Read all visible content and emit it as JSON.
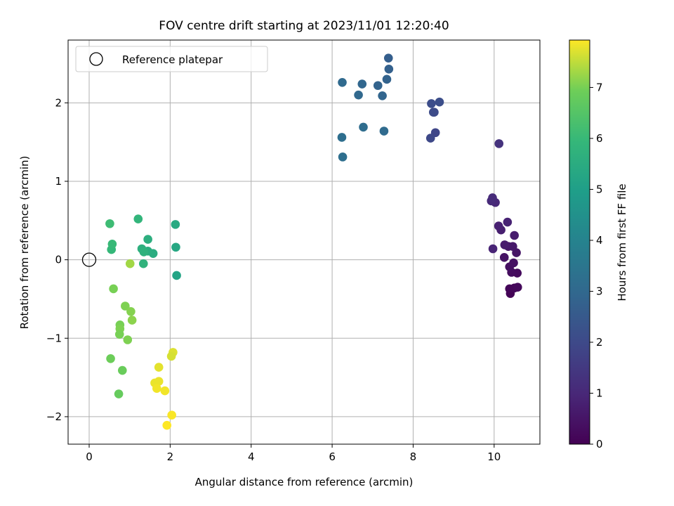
{
  "chart_data": {
    "type": "scatter",
    "title": "FOV centre drift starting at 2023/11/01 12:20:40",
    "xlabel": "Angular distance from reference (arcmin)",
    "ylabel": "Rotation from reference (arcmin)",
    "colorbar_label": "Hours from first FF file",
    "xlim": [
      -0.52,
      11.13
    ],
    "ylim": [
      -2.35,
      2.8
    ],
    "xticks": [
      0,
      2,
      4,
      6,
      8,
      10
    ],
    "yticks": [
      -2,
      -1,
      0,
      1,
      2
    ],
    "colorbar_range": [
      0,
      7.93
    ],
    "colorbar_ticks": [
      0,
      1,
      2,
      3,
      4,
      5,
      6,
      7
    ],
    "colormap": "viridis",
    "grid": true,
    "legend": {
      "location": "upper-left",
      "entries": [
        "Reference platepar"
      ]
    },
    "reference_point": {
      "x": 0,
      "y": 0
    },
    "points": [
      {
        "x": 10.4,
        "y": -0.43,
        "t": 0.05
      },
      {
        "x": 10.38,
        "y": -0.37,
        "t": 0.1
      },
      {
        "x": 10.5,
        "y": -0.36,
        "t": 0.15
      },
      {
        "x": 10.58,
        "y": -0.35,
        "t": 0.2
      },
      {
        "x": 10.57,
        "y": -0.17,
        "t": 0.25
      },
      {
        "x": 10.43,
        "y": -0.16,
        "t": 0.3
      },
      {
        "x": 10.38,
        "y": -0.09,
        "t": 0.35
      },
      {
        "x": 10.48,
        "y": -0.04,
        "t": 0.4
      },
      {
        "x": 10.25,
        "y": 0.03,
        "t": 0.45
      },
      {
        "x": 10.55,
        "y": 0.09,
        "t": 0.5
      },
      {
        "x": 10.35,
        "y": 0.17,
        "t": 0.55
      },
      {
        "x": 10.46,
        "y": 0.17,
        "t": 0.6
      },
      {
        "x": 10.26,
        "y": 0.19,
        "t": 0.65
      },
      {
        "x": 10.5,
        "y": 0.31,
        "t": 0.7
      },
      {
        "x": 10.17,
        "y": 0.38,
        "t": 0.75
      },
      {
        "x": 10.11,
        "y": 0.43,
        "t": 0.8
      },
      {
        "x": 10.33,
        "y": 0.48,
        "t": 0.85
      },
      {
        "x": 9.97,
        "y": 0.14,
        "t": 0.9
      },
      {
        "x": 10.03,
        "y": 0.73,
        "t": 1.0
      },
      {
        "x": 9.93,
        "y": 0.75,
        "t": 1.05
      },
      {
        "x": 9.96,
        "y": 0.79,
        "t": 1.1
      },
      {
        "x": 10.12,
        "y": 1.48,
        "t": 1.3
      },
      {
        "x": 8.55,
        "y": 1.62,
        "t": 1.9
      },
      {
        "x": 8.43,
        "y": 1.55,
        "t": 1.95
      },
      {
        "x": 8.52,
        "y": 1.88,
        "t": 2.0
      },
      {
        "x": 8.5,
        "y": 1.88,
        "t": 2.05
      },
      {
        "x": 8.45,
        "y": 1.99,
        "t": 2.1
      },
      {
        "x": 8.65,
        "y": 2.01,
        "t": 2.15
      },
      {
        "x": 7.39,
        "y": 2.57,
        "t": 2.7
      },
      {
        "x": 7.4,
        "y": 2.43,
        "t": 2.75
      },
      {
        "x": 7.35,
        "y": 2.3,
        "t": 2.8
      },
      {
        "x": 7.13,
        "y": 2.22,
        "t": 2.85
      },
      {
        "x": 7.24,
        "y": 2.09,
        "t": 2.9
      },
      {
        "x": 6.74,
        "y": 2.24,
        "t": 2.95
      },
      {
        "x": 6.65,
        "y": 2.1,
        "t": 3.0
      },
      {
        "x": 6.25,
        "y": 2.26,
        "t": 3.05
      },
      {
        "x": 7.28,
        "y": 1.64,
        "t": 3.1
      },
      {
        "x": 6.77,
        "y": 1.69,
        "t": 3.15
      },
      {
        "x": 6.24,
        "y": 1.56,
        "t": 3.2
      },
      {
        "x": 6.26,
        "y": 1.31,
        "t": 3.25
      },
      {
        "x": 2.16,
        "y": -0.2,
        "t": 5.2
      },
      {
        "x": 2.14,
        "y": 0.16,
        "t": 5.3
      },
      {
        "x": 2.13,
        "y": 0.45,
        "t": 5.4
      },
      {
        "x": 1.58,
        "y": 0.08,
        "t": 5.5
      },
      {
        "x": 1.45,
        "y": 0.11,
        "t": 5.55
      },
      {
        "x": 1.45,
        "y": 0.26,
        "t": 5.6
      },
      {
        "x": 1.3,
        "y": 0.14,
        "t": 5.65
      },
      {
        "x": 1.35,
        "y": 0.1,
        "t": 5.7
      },
      {
        "x": 1.34,
        "y": -0.05,
        "t": 5.75
      },
      {
        "x": 1.21,
        "y": 0.52,
        "t": 5.85
      },
      {
        "x": 0.55,
        "y": 0.13,
        "t": 5.95
      },
      {
        "x": 0.57,
        "y": 0.2,
        "t": 6.0
      },
      {
        "x": 0.51,
        "y": 0.46,
        "t": 6.1
      },
      {
        "x": 0.6,
        "y": -0.37,
        "t": 7.0
      },
      {
        "x": 0.89,
        "y": -0.59,
        "t": 7.05
      },
      {
        "x": 1.03,
        "y": -0.66,
        "t": 7.1
      },
      {
        "x": 1.06,
        "y": -0.77,
        "t": 7.15
      },
      {
        "x": 0.76,
        "y": -0.83,
        "t": 7.0
      },
      {
        "x": 0.76,
        "y": -0.88,
        "t": 7.05
      },
      {
        "x": 0.75,
        "y": -0.95,
        "t": 7.0
      },
      {
        "x": 0.95,
        "y": -1.02,
        "t": 7.05
      },
      {
        "x": 0.53,
        "y": -1.26,
        "t": 6.9
      },
      {
        "x": 0.82,
        "y": -1.41,
        "t": 6.85
      },
      {
        "x": 0.73,
        "y": -1.71,
        "t": 6.8
      },
      {
        "x": 1.01,
        "y": -0.05,
        "t": 7.3
      },
      {
        "x": 2.07,
        "y": -1.18,
        "t": 7.7
      },
      {
        "x": 2.03,
        "y": -1.23,
        "t": 7.65
      },
      {
        "x": 1.72,
        "y": -1.37,
        "t": 7.75
      },
      {
        "x": 1.62,
        "y": -1.57,
        "t": 7.8
      },
      {
        "x": 1.72,
        "y": -1.55,
        "t": 7.8
      },
      {
        "x": 1.67,
        "y": -1.64,
        "t": 7.85
      },
      {
        "x": 1.87,
        "y": -1.67,
        "t": 7.85
      },
      {
        "x": 2.04,
        "y": -1.98,
        "t": 7.9
      },
      {
        "x": 1.92,
        "y": -2.11,
        "t": 7.93
      }
    ]
  }
}
